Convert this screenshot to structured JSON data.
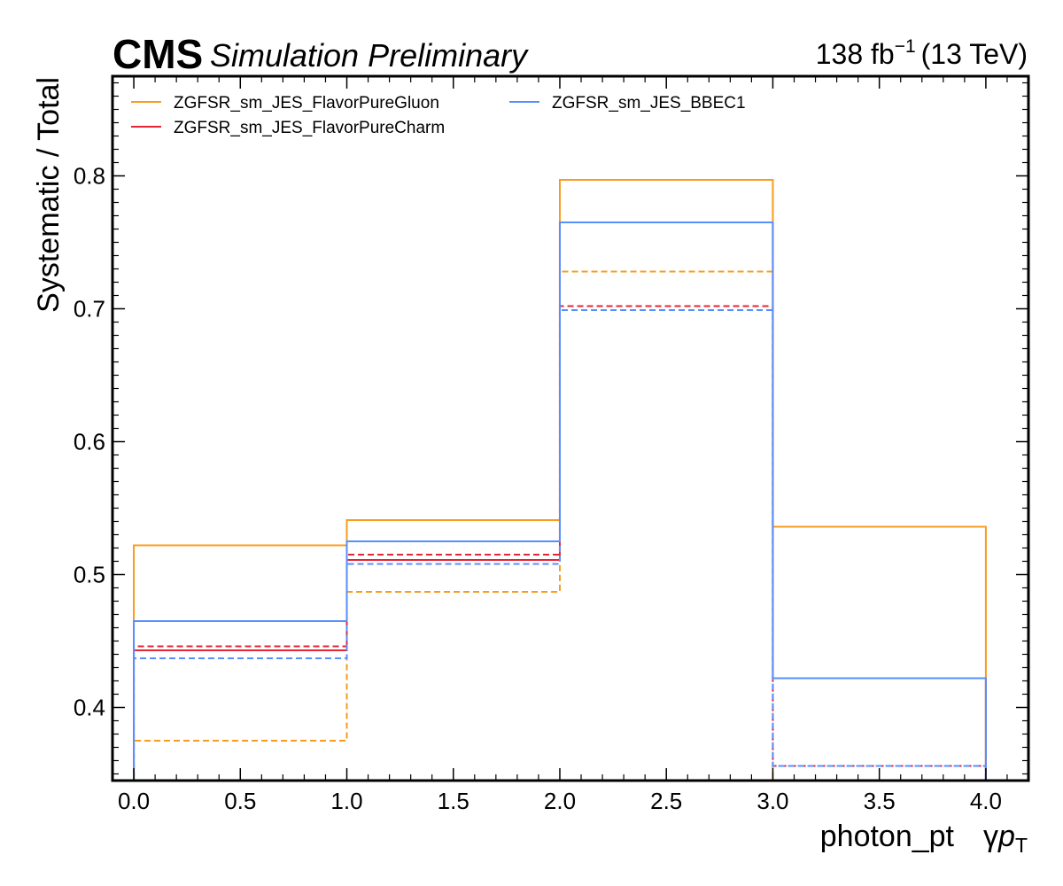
{
  "header": {
    "experiment": "CMS",
    "status": "Simulation Preliminary",
    "lumi_value": "138 fb",
    "lumi_exponent": "−1",
    "energy": "(13 TeV)"
  },
  "chart_data": {
    "type": "step",
    "xlabel_main": "photon_pt",
    "xlabel_symbol_gamma": "γ",
    "xlabel_symbol_p": "p",
    "xlabel_symbol_sub": "T",
    "ylabel": "Systematic / Total",
    "xlim": [
      -0.1,
      4.2
    ],
    "ylim": [
      0.345,
      0.875
    ],
    "x_ticks": [
      "0.0",
      "0.5",
      "1.0",
      "1.5",
      "2.0",
      "2.5",
      "3.0",
      "3.5",
      "4.0"
    ],
    "y_ticks": [
      "0.4",
      "0.5",
      "0.6",
      "0.7",
      "0.8"
    ],
    "bin_edges": [
      0,
      1,
      2,
      3,
      4
    ],
    "legend_placement": "top-left, two columns",
    "series": [
      {
        "name": "ZGFSR_sm_JES_FlavorPureGluon",
        "color": "#f89c20",
        "up": [
          0.522,
          0.541,
          0.797,
          0.536
        ],
        "down": [
          0.375,
          0.487,
          0.728,
          0.345
        ]
      },
      {
        "name": "ZGFSR_sm_JES_FlavorPureCharm",
        "color": "#e42536",
        "up": [
          0.443,
          0.511,
          0.765,
          0.422
        ],
        "down": [
          0.446,
          0.515,
          0.702,
          0.356
        ]
      },
      {
        "name": "ZGFSR_sm_JES_BBEC1",
        "color": "#5790fc",
        "up": [
          0.465,
          0.525,
          0.765,
          0.422
        ],
        "down": [
          0.437,
          0.508,
          0.699,
          0.356
        ]
      }
    ]
  }
}
